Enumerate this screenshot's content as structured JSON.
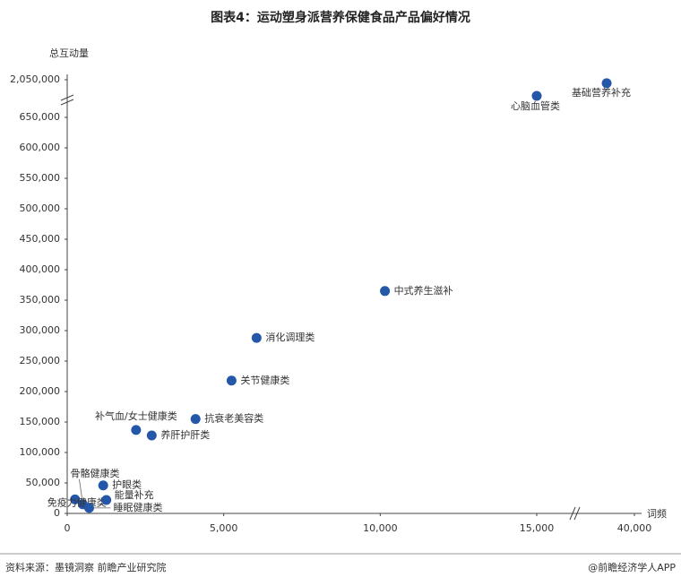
{
  "chart_data": {
    "type": "scatter",
    "title": "图表4：运动塑身派营养保健食品产品偏好情况",
    "y_label": "总互动量",
    "x_label": "词频",
    "source": "资料来源：墨镜洞察  前瞻产业研究院",
    "credit": "@前瞻经济学人APP",
    "color": "#2457a8",
    "categories": [
      "基础营养补充",
      "心脑血管类",
      "中式养生滋补",
      "消化调理类",
      "关节健康类",
      "抗衰老美容类",
      "补气血/女士健康类",
      "养肝护肝类",
      "护眼类",
      "骨骼健康类",
      "免疫力健康类",
      "能量补充",
      "睡眠健康类"
    ],
    "x": [
      32900,
      15000,
      10150,
      6050,
      5250,
      4100,
      2200,
      2700,
      1150,
      500,
      250,
      1250,
      700
    ],
    "values": [
      1920000,
      1450000,
      365000,
      288000,
      218000,
      155000,
      137000,
      128000,
      46000,
      15000,
      23000,
      22000,
      9000
    ],
    "xlim": [
      0,
      40000
    ],
    "xbreak": 15000,
    "xticks": [
      0,
      {
        "value": 5000,
        "label": "5,000"
      },
      {
        "value": 10000,
        "label": "10,000"
      },
      {
        "value": 15000,
        "label": "15,000"
      },
      {
        "value": 40000,
        "label": "40,000"
      }
    ],
    "ylim": [
      0,
      2050000
    ],
    "ybreak": 650000,
    "yticks": [
      0,
      {
        "value": 50000,
        "label": "50,000"
      },
      {
        "value": 100000,
        "label": "100,000"
      },
      {
        "value": 150000,
        "label": "150,000"
      },
      {
        "value": 200000,
        "label": "200,000"
      },
      {
        "value": 250000,
        "label": "250,000"
      },
      {
        "value": 300000,
        "label": "300,000"
      },
      {
        "value": 350000,
        "label": "350,000"
      },
      {
        "value": 400000,
        "label": "400,000"
      },
      {
        "value": 450000,
        "label": "450,000"
      },
      {
        "value": 500000,
        "label": "500,000"
      },
      {
        "value": 550000,
        "label": "550,000"
      },
      {
        "value": 600000,
        "label": "600,000"
      },
      {
        "value": 650000,
        "label": "650,000"
      },
      {
        "value": 2050000,
        "label": "2,050,000"
      }
    ]
  }
}
